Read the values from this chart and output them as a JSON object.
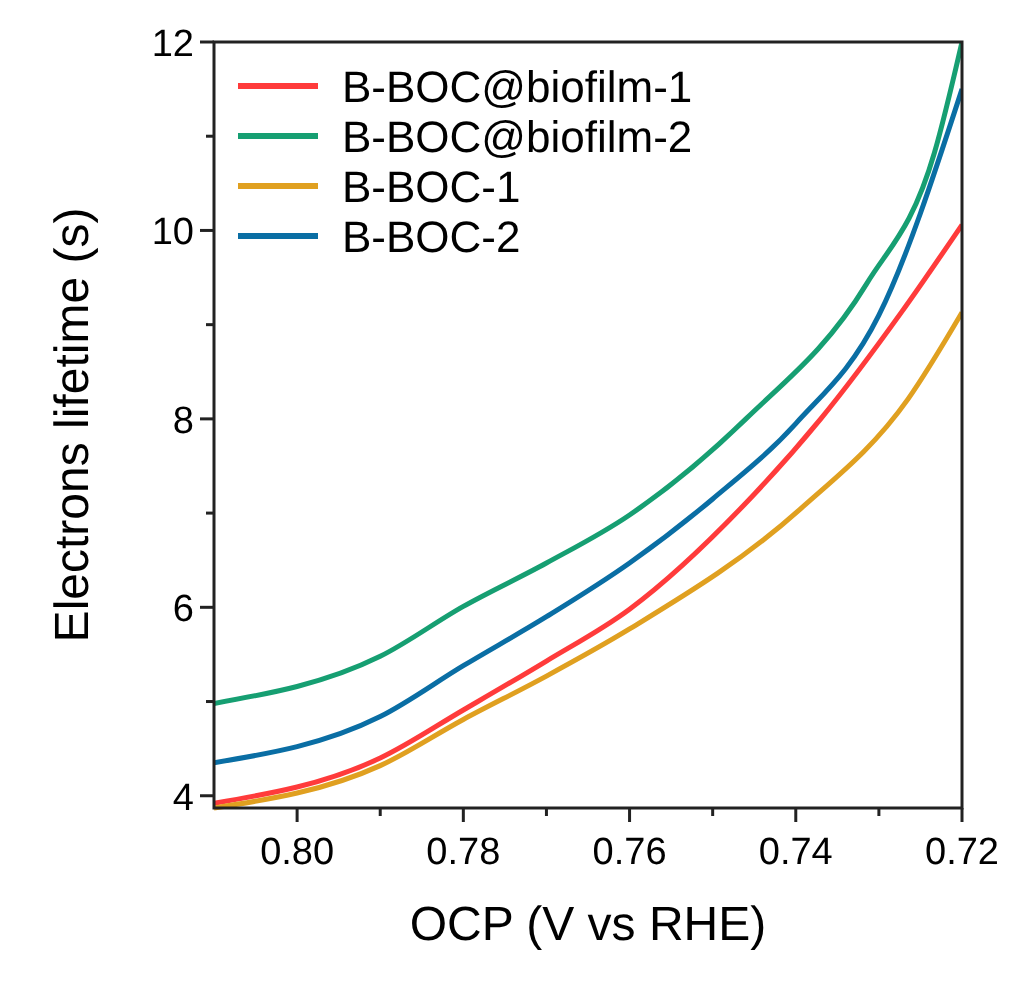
{
  "chart_data": {
    "type": "line",
    "xlabel": "OCP (V vs RHE)",
    "ylabel": "Electrons lifetime (s)",
    "xlim": [
      0.81,
      0.72
    ],
    "ylim": [
      3.87,
      12
    ],
    "xticks": [
      {
        "value": 0.8,
        "label": "0.80"
      },
      {
        "value": 0.79,
        "label": null
      },
      {
        "value": 0.78,
        "label": "0.78"
      },
      {
        "value": 0.77,
        "label": null
      },
      {
        "value": 0.76,
        "label": "0.76"
      },
      {
        "value": 0.75,
        "label": null
      },
      {
        "value": 0.74,
        "label": "0.74"
      },
      {
        "value": 0.73,
        "label": null
      },
      {
        "value": 0.72,
        "label": "0.72"
      }
    ],
    "yticks": [
      4,
      {
        "value": 5,
        "label": null
      },
      6,
      {
        "value": 7,
        "label": null
      },
      8,
      {
        "value": 9,
        "label": null
      },
      10,
      {
        "value": 11,
        "label": null
      },
      12
    ],
    "grid": false,
    "legend": "top left",
    "marker": "none",
    "line_style": "solid",
    "series": [
      {
        "name": "B-BOC@biofilm-1",
        "color": "#ff3b3b",
        "x": [
          0.81,
          0.79,
          0.78,
          0.77,
          0.76,
          0.745,
          0.737,
          0.7273,
          0.72
        ],
        "values": [
          3.92,
          4.4,
          4.91,
          5.43,
          5.98,
          7.2,
          8.0,
          9.13,
          10.06
        ]
      },
      {
        "name": "B-BOC@biofilm-2",
        "color": "#169f72",
        "x": [
          0.81,
          0.79,
          0.78,
          0.77,
          0.76,
          0.746,
          0.7315,
          0.7233,
          0.72
        ],
        "values": [
          4.98,
          5.48,
          6.01,
          6.47,
          6.98,
          8.0,
          9.43,
          10.83,
          12
        ]
      },
      {
        "name": "B-BOC-1",
        "color": "#e0a020",
        "x": [
          0.81,
          0.79,
          0.78,
          0.77,
          0.76,
          0.7395,
          0.7265,
          0.72
        ],
        "values": [
          3.87,
          4.32,
          4.81,
          5.27,
          5.77,
          7.04,
          8.21,
          9.13
        ]
      },
      {
        "name": "B-BOC-2",
        "color": "#0a6ea4",
        "x": [
          0.81,
          0.79,
          0.78,
          0.77,
          0.76,
          0.75,
          0.74,
          0.73,
          0.72
        ],
        "values": [
          4.35,
          4.84,
          5.38,
          5.9,
          6.47,
          7.15,
          7.95,
          9.1,
          11.5
        ]
      }
    ]
  }
}
